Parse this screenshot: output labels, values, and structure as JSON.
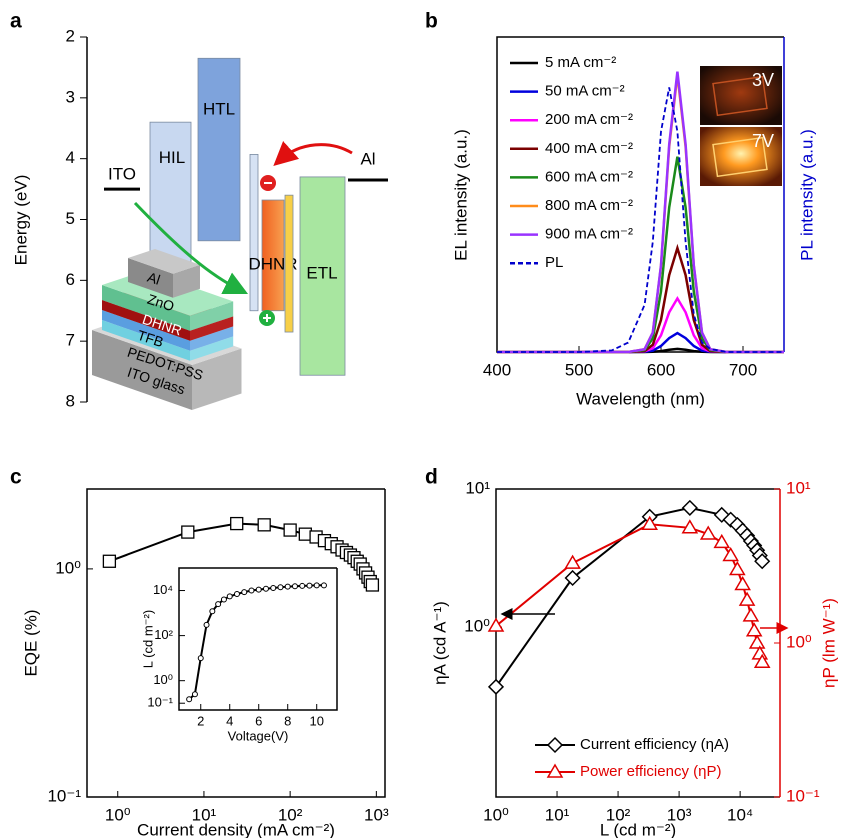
{
  "chart_data": [
    {
      "type": "energy-level",
      "panel": "a",
      "ylabel": "Energy (eV)",
      "ylim": [
        2,
        8
      ],
      "inverted": true,
      "yticks": [
        2,
        3,
        4,
        5,
        6,
        7,
        8
      ],
      "layers": [
        {
          "label": "ITO",
          "top": 4.5
        },
        {
          "label": "HIL",
          "top": 3.4,
          "bottom": 5.75,
          "color": "#c8d8f0"
        },
        {
          "label": "HTL",
          "top": 2.35,
          "bottom": 5.35,
          "color": "#7ea3dc"
        },
        {
          "label": null,
          "top": 3.93,
          "bottom": 6.5,
          "color": "#d6e2f4"
        },
        {
          "label": "DHNR",
          "top": 4.68,
          "bottom": 6.5,
          "color": "#f5843a"
        },
        {
          "label": null,
          "top": 4.6,
          "bottom": 6.85,
          "color": "#f7cf48"
        },
        {
          "label": "ETL",
          "top": 4.3,
          "bottom": 7.56,
          "color": "#a8e6a0"
        },
        {
          "label": "Al",
          "top": 4.35
        }
      ],
      "stack_labels": [
        "Al",
        "ZnO",
        "DHNR",
        "TFB",
        "PEDOT:PSS",
        "ITO glass"
      ]
    },
    {
      "type": "line",
      "panel": "b",
      "xlabel": "Wavelength (nm)",
      "ylabel": "EL intensity (a.u.)",
      "y2label": "PL intensity (a.u.)",
      "xlim": [
        400,
        750
      ],
      "xticks": [
        400,
        500,
        600,
        700
      ],
      "ylim": [
        0,
        1
      ],
      "y2lim": [
        0,
        1
      ],
      "y2color": "#0000cc",
      "x": [
        400,
        500,
        540,
        560,
        580,
        590,
        600,
        610,
        620,
        630,
        640,
        650,
        660,
        680,
        700,
        750
      ],
      "series": [
        {
          "name": "5 mA cm⁻²",
          "color": "#000000",
          "values": [
            0,
            0,
            0,
            0,
            0,
            0.001,
            0.003,
            0.007,
            0.01,
            0.007,
            0.003,
            0.001,
            0,
            0,
            0,
            0
          ]
        },
        {
          "name": "50 mA cm⁻²",
          "color": "#0000dd",
          "values": [
            0,
            0,
            0,
            0,
            0.001,
            0.004,
            0.019,
            0.044,
            0.06,
            0.044,
            0.019,
            0.004,
            0.001,
            0,
            0,
            0
          ]
        },
        {
          "name": "200 mA cm⁻²",
          "color": "#ff00ff",
          "values": [
            0,
            0,
            0,
            0,
            0.002,
            0.012,
            0.053,
            0.126,
            0.17,
            0.126,
            0.053,
            0.012,
            0.002,
            0,
            0,
            0
          ]
        },
        {
          "name": "400 mA cm⁻²",
          "color": "#7b0000",
          "values": [
            0,
            0,
            0,
            0,
            0.003,
            0.023,
            0.102,
            0.244,
            0.33,
            0.244,
            0.102,
            0.023,
            0.003,
            0,
            0,
            0
          ]
        },
        {
          "name": "600 mA cm⁻²",
          "color": "#1a8a1a",
          "values": [
            0,
            0,
            0,
            0,
            0.006,
            0.043,
            0.192,
            0.459,
            0.62,
            0.459,
            0.192,
            0.043,
            0.006,
            0,
            0,
            0
          ]
        },
        {
          "name": "800 mA cm⁻²",
          "color": "#ff8c1a",
          "values": [
            0,
            0,
            0,
            0,
            0.009,
            0.062,
            0.273,
            0.651,
            0.88,
            0.651,
            0.273,
            0.062,
            0.009,
            0,
            0,
            0
          ]
        },
        {
          "name": "900 mA cm⁻²",
          "color": "#9933ff",
          "values": [
            0,
            0,
            0,
            0,
            0.009,
            0.062,
            0.276,
            0.659,
            0.89,
            0.659,
            0.276,
            0.062,
            0.009,
            0,
            0,
            0
          ]
        },
        {
          "name": "PL",
          "color": "#0000cc",
          "dashed": true,
          "axis": "y2",
          "values": [
            0,
            0,
            0.005,
            0.03,
            0.15,
            0.35,
            0.7,
            0.84,
            0.7,
            0.35,
            0.12,
            0.03,
            0.01,
            0,
            0,
            0
          ]
        }
      ],
      "images": [
        "3V",
        "7V"
      ]
    },
    {
      "type": "scatter-line",
      "panel": "c",
      "xlabel": "Current density (mA cm⁻²)",
      "ylabel": "EQE (%)",
      "xlog": true,
      "ylog": true,
      "xlim": [
        0.44,
        1260
      ],
      "ylim": [
        0.1,
        2.24
      ],
      "xticks": [
        {
          "value": 1,
          "label": "10⁰"
        },
        {
          "value": 10,
          "label": "10¹"
        },
        {
          "value": 100,
          "label": "10²"
        },
        {
          "value": 1000,
          "label": "10³"
        }
      ],
      "yticks": [
        {
          "value": 0.1,
          "label": "10⁻¹"
        },
        {
          "value": 1,
          "label": "10⁰"
        }
      ],
      "series": [
        {
          "color": "#000000",
          "marker": "square",
          "x": [
            0.8,
            6.5,
            24,
            50,
            100,
            150,
            200,
            250,
            300,
            350,
            400,
            450,
            500,
            550,
            600,
            650,
            700,
            750,
            800,
            850,
            900
          ],
          "values": [
            1.08,
            1.45,
            1.58,
            1.56,
            1.48,
            1.42,
            1.38,
            1.33,
            1.29,
            1.25,
            1.21,
            1.18,
            1.15,
            1.12,
            1.08,
            1.05,
            1.0,
            0.96,
            0.92,
            0.88,
            0.85
          ]
        }
      ]
    },
    {
      "type": "scatter-line",
      "inset": true,
      "xlabel": "Voltage(V)",
      "ylabel": "L (cd m⁻²)",
      "ylog": true,
      "xlim": [
        0.5,
        11.4
      ],
      "ylim": [
        0.05,
        100000
      ],
      "xticks": [
        2,
        4,
        6,
        8,
        10
      ],
      "yticks": [
        {
          "value": 0.1,
          "label": "10⁻¹"
        },
        {
          "value": 1,
          "label": "10⁰"
        },
        {
          "value": 100,
          "label": "10²"
        },
        {
          "value": 10000,
          "label": "10⁴"
        }
      ],
      "series": [
        {
          "color": "#000000",
          "marker": "circle",
          "x": [
            1.2,
            1.6,
            2.0,
            2.4,
            2.8,
            3.2,
            3.6,
            4.0,
            4.5,
            5.0,
            5.5,
            6.0,
            6.5,
            7.0,
            7.5,
            8.0,
            8.5,
            9.0,
            9.5,
            10.0,
            10.5
          ],
          "values": [
            0.15,
            0.25,
            10,
            300,
            1200,
            2500,
            4000,
            5500,
            7000,
            8500,
            10000,
            11000,
            12000,
            13000,
            14000,
            15000,
            15500,
            16000,
            16500,
            17000,
            17000
          ]
        }
      ]
    },
    {
      "type": "scatter-line",
      "panel": "d",
      "xlabel": "L (cd m⁻²)",
      "ylabel": "ηA (cd A⁻¹)",
      "y2label": "ηP (lm W⁻¹)",
      "xlog": true,
      "ylog": true,
      "y2log": true,
      "xlim": [
        1,
        45000
      ],
      "ylim": [
        0.059,
        10
      ],
      "y2lim": [
        0.1,
        10
      ],
      "y2color": "#e00000",
      "xticks": [
        {
          "value": 1,
          "label": "10⁰"
        },
        {
          "value": 10,
          "label": "10¹"
        },
        {
          "value": 100,
          "label": "10²"
        },
        {
          "value": 1000,
          "label": "10³"
        },
        {
          "value": 10000,
          "label": "10⁴"
        }
      ],
      "yticks": [
        {
          "value": 1,
          "label": "10⁰"
        },
        {
          "value": 10,
          "label": "10¹"
        }
      ],
      "y2ticks": [
        {
          "value": 0.1,
          "label": "10⁻¹"
        },
        {
          "value": 1,
          "label": "10⁰"
        },
        {
          "value": 10,
          "label": "10¹"
        }
      ],
      "series": [
        {
          "name": "Current efficiency (ηA)",
          "color": "#000000",
          "marker": "diamond",
          "x": [
            1,
            18,
            330,
            1500,
            5000,
            7000,
            9000,
            11000,
            13000,
            15000,
            17000,
            19000,
            21000,
            23000
          ],
          "values": [
            0.37,
            2.27,
            6.3,
            7.3,
            6.5,
            6.0,
            5.5,
            5.0,
            4.6,
            4.2,
            3.9,
            3.6,
            3.3,
            3.0
          ]
        },
        {
          "name": "Power efficiency (ηP)",
          "color": "#e00000",
          "marker": "triangle",
          "axis": "y2",
          "x": [
            1,
            18,
            330,
            1500,
            3000,
            5000,
            7000,
            9000,
            11000,
            13000,
            15000,
            17000,
            19000,
            21000,
            23000
          ],
          "values": [
            1.29,
            3.3,
            5.9,
            5.6,
            5.1,
            4.5,
            3.7,
            3.0,
            2.4,
            1.9,
            1.5,
            1.2,
            1.0,
            0.85,
            0.75
          ]
        }
      ]
    }
  ]
}
